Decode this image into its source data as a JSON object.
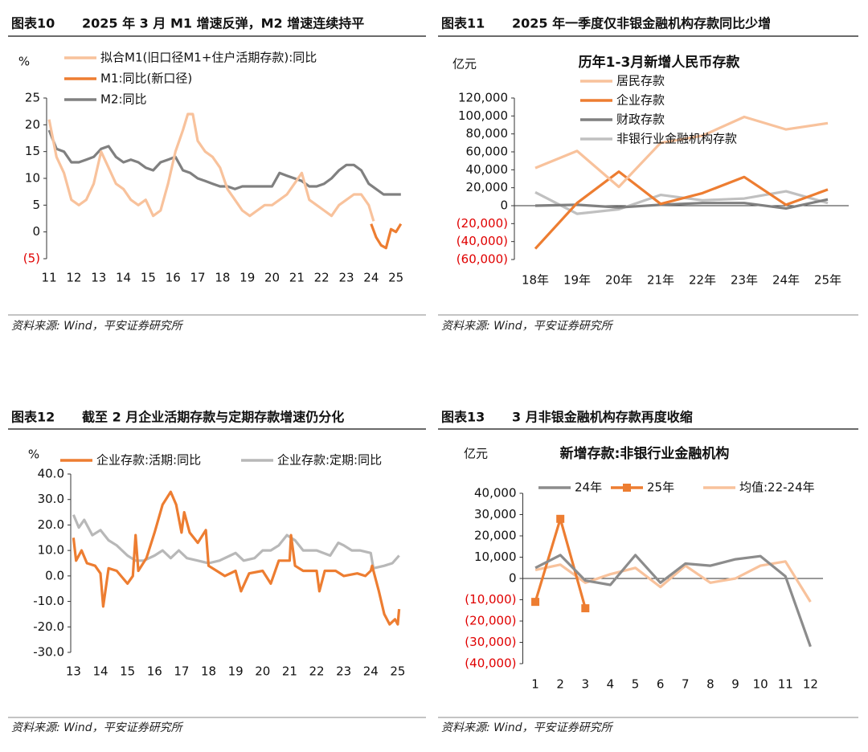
{
  "chart_data": [
    {
      "type": "line",
      "label": "图表10",
      "title": "2025 年 3 月 M1 增速反弹，M2 增速连续持平",
      "source": "资料来源: Wind，平安证券研究所",
      "y_unit": "%",
      "xlim": [
        10.9,
        25.4
      ],
      "xticks": [
        11,
        12,
        13,
        14,
        15,
        16,
        17,
        18,
        19,
        20,
        21,
        22,
        23,
        24,
        25
      ],
      "ylim": [
        -5,
        25
      ],
      "yticks": [
        25,
        20,
        15,
        10,
        5,
        0,
        {
          "value": -5,
          "label": "(5)"
        }
      ],
      "negative_tick_color": "#e00000",
      "legend": "top-left",
      "series": [
        {
          "name": "拟合M1(旧口径M1+住户活期存款):同比",
          "color": "#f8c29c",
          "x": [
            11,
            11.3,
            11.6,
            11.9,
            12.2,
            12.5,
            12.8,
            13.1,
            13.4,
            13.7,
            14,
            14.3,
            14.6,
            14.9,
            15.2,
            15.5,
            15.8,
            16.1,
            16.4,
            16.6,
            16.8,
            17,
            17.3,
            17.6,
            17.9,
            18.2,
            18.5,
            18.8,
            19.1,
            19.4,
            19.7,
            20,
            20.3,
            20.6,
            20.9,
            21.2,
            21.5,
            21.8,
            22.1,
            22.4,
            22.7,
            23,
            23.3,
            23.6,
            23.9,
            24.1
          ],
          "values": [
            21,
            14,
            11,
            6,
            5,
            6,
            9,
            15,
            12,
            9,
            8,
            6,
            5,
            6,
            3,
            4,
            9,
            15,
            19,
            22,
            22,
            17,
            15,
            14,
            12,
            8,
            6,
            4,
            3,
            4,
            5,
            5,
            6,
            7,
            9,
            11,
            6,
            5,
            4,
            3,
            5,
            6,
            7,
            7,
            5,
            2
          ]
        },
        {
          "name": "M1:同比(新口径)",
          "color": "#ed7d31",
          "x": [
            24,
            24.2,
            24.4,
            24.6,
            24.8,
            25,
            25.2
          ],
          "values": [
            1.5,
            -1,
            -2.5,
            -3,
            0.5,
            0,
            1.5
          ]
        },
        {
          "name": "M2:同比",
          "color": "#808080",
          "x": [
            11,
            11.3,
            11.6,
            11.9,
            12.2,
            12.5,
            12.8,
            13.1,
            13.4,
            13.7,
            14,
            14.3,
            14.6,
            14.9,
            15.2,
            15.5,
            15.8,
            16.1,
            16.4,
            16.7,
            17,
            17.3,
            17.6,
            17.9,
            18.2,
            18.5,
            18.8,
            19.1,
            19.4,
            19.7,
            20,
            20.3,
            20.6,
            20.9,
            21.2,
            21.5,
            21.8,
            22.1,
            22.4,
            22.7,
            23,
            23.3,
            23.6,
            23.9,
            24.2,
            24.5,
            24.8,
            25.2
          ],
          "values": [
            19,
            15.5,
            15,
            13,
            13,
            13.5,
            14,
            15.5,
            16,
            14,
            13,
            13.5,
            13,
            12,
            11.5,
            13,
            13.5,
            14,
            11.5,
            11,
            10,
            9.5,
            9,
            8.5,
            8.5,
            8,
            8.5,
            8.5,
            8.5,
            8.5,
            8.5,
            11,
            10.5,
            10,
            9.5,
            8.5,
            8.5,
            9,
            10,
            11.5,
            12.5,
            12.5,
            11.5,
            9,
            8,
            7,
            7,
            7
          ]
        }
      ]
    },
    {
      "type": "line",
      "label": "图表11",
      "title": "2025 年一季度仅非银金融机构存款同比少增",
      "source": "资料来源: Wind，平安证券研究所",
      "y_unit": "亿元",
      "chart_title": "历年1-3月新增人民币存款",
      "categories": [
        "18年",
        "19年",
        "20年",
        "21年",
        "22年",
        "23年",
        "24年",
        "25年"
      ],
      "ylim": [
        -60000,
        120000
      ],
      "yticks": [
        {
          "value": 120000,
          "label": "120,000"
        },
        {
          "value": 100000,
          "label": "100,000"
        },
        {
          "value": 80000,
          "label": "80,000"
        },
        {
          "value": 60000,
          "label": "60,000"
        },
        {
          "value": 40000,
          "label": "40,000"
        },
        {
          "value": 20000,
          "label": "20,000"
        },
        0,
        {
          "value": -20000,
          "label": "(20,000)"
        },
        {
          "value": -40000,
          "label": "(40,000)"
        },
        {
          "value": -60000,
          "label": "(60,000)"
        }
      ],
      "negative_tick_color": "#e00000",
      "zero_line": true,
      "legend": "top-center",
      "series": [
        {
          "name": "居民存款",
          "color": "#f8c29c",
          "values": [
            42000,
            61000,
            21000,
            70000,
            78000,
            99000,
            85000,
            92000
          ]
        },
        {
          "name": "企业存款",
          "color": "#ed7d31",
          "values": [
            -48000,
            3000,
            38000,
            2000,
            14000,
            32000,
            1000,
            18000
          ]
        },
        {
          "name": "财政存款",
          "color": "#808080",
          "values": [
            0,
            1000,
            -2000,
            1000,
            3000,
            3000,
            -3000,
            7000
          ]
        },
        {
          "name": "非银行业金融机构存款",
          "color": "#c0c0c0",
          "values": [
            15000,
            -9000,
            -4000,
            12000,
            6000,
            8000,
            16000,
            3000
          ]
        }
      ]
    },
    {
      "type": "line",
      "label": "图表12",
      "title": "截至 2 月企业活期存款与定期存款增速仍分化",
      "source": "资料来源: Wind，平安证券研究所",
      "y_unit": "%",
      "xlim": [
        12.9,
        25.3
      ],
      "xticks": [
        13,
        14,
        15,
        16,
        17,
        18,
        19,
        20,
        21,
        22,
        23,
        24,
        25
      ],
      "ylim": [
        -30,
        40
      ],
      "yticks": [
        {
          "value": 40,
          "label": "40.0"
        },
        {
          "value": 30,
          "label": "30.0"
        },
        {
          "value": 20,
          "label": "20.0"
        },
        {
          "value": 10,
          "label": "10.0"
        },
        {
          "value": 0,
          "label": "0.0"
        },
        {
          "value": -10,
          "label": "-10.0"
        },
        {
          "value": -20,
          "label": "-20.0"
        },
        {
          "value": -30,
          "label": "-30.0"
        }
      ],
      "legend": "top",
      "series": [
        {
          "name": "企业存款:活期:同比",
          "color": "#ed7d31",
          "x": [
            13,
            13.1,
            13.3,
            13.5,
            13.8,
            14,
            14.1,
            14.3,
            14.6,
            15,
            15.2,
            15.3,
            15.4,
            15.7,
            16,
            16.3,
            16.6,
            16.8,
            17,
            17.1,
            17.3,
            17.6,
            17.9,
            18,
            18.3,
            18.6,
            19,
            19.2,
            19.5,
            20,
            20.3,
            20.6,
            21,
            21.05,
            21.2,
            21.5,
            22,
            22.1,
            22.3,
            22.7,
            23,
            23.5,
            23.8,
            24,
            24.05,
            24.3,
            24.5,
            24.7,
            24.9,
            25,
            25.05
          ],
          "values": [
            15,
            6,
            10,
            5,
            4,
            1,
            -12,
            3,
            2,
            -3,
            0,
            16,
            2,
            7,
            17,
            28,
            33,
            28,
            17,
            25,
            17,
            13,
            18,
            4,
            2,
            0,
            2,
            -6,
            1,
            2,
            -3,
            6,
            6,
            16,
            4,
            2,
            2,
            -6,
            2,
            2,
            0,
            1,
            0,
            2,
            4,
            -6,
            -15,
            -19,
            -17,
            -19,
            -13
          ]
        },
        {
          "name": "企业存款:定期:同比",
          "color": "#b8b8b8",
          "x": [
            13,
            13.2,
            13.4,
            13.7,
            14,
            14.3,
            14.6,
            15,
            15.3,
            15.6,
            16,
            16.3,
            16.6,
            16.9,
            17.2,
            17.6,
            18,
            18.4,
            18.8,
            19,
            19.3,
            19.7,
            20,
            20.3,
            20.6,
            20.9,
            21.2,
            21.5,
            22,
            22.5,
            22.8,
            23,
            23.3,
            23.6,
            24,
            24.1,
            24.5,
            24.8,
            25.05
          ],
          "values": [
            24,
            19,
            22,
            16,
            18,
            14,
            12,
            8,
            6,
            6,
            8,
            10,
            7,
            10,
            7,
            6,
            5,
            6,
            8,
            9,
            6,
            7,
            10,
            10,
            12,
            16,
            14,
            10,
            10,
            8,
            13,
            12,
            10,
            10,
            9,
            3,
            4,
            5,
            8
          ]
        }
      ]
    },
    {
      "type": "line",
      "label": "图表13",
      "title": "3 月非银金融机构存款再度收缩",
      "source": "资料来源: Wind，平安证券研究所",
      "y_unit": "亿元",
      "chart_title": "新增存款:非银行业金融机构",
      "categories": [
        "1",
        "2",
        "3",
        "4",
        "5",
        "6",
        "7",
        "8",
        "9",
        "10",
        "11",
        "12"
      ],
      "ylim": [
        -40000,
        40000
      ],
      "yticks": [
        {
          "value": 40000,
          "label": "40,000"
        },
        {
          "value": 30000,
          "label": "30,000"
        },
        {
          "value": 20000,
          "label": "20,000"
        },
        {
          "value": 10000,
          "label": "10,000"
        },
        0,
        {
          "value": -10000,
          "label": "(10,000)"
        },
        {
          "value": -20000,
          "label": "(20,000)"
        },
        {
          "value": -30000,
          "label": "(30,000)"
        },
        {
          "value": -40000,
          "label": "(40,000)"
        }
      ],
      "negative_tick_color": "#e00000",
      "zero_line": true,
      "legend": "top",
      "series": [
        {
          "name": "24年",
          "color": "#8c8c8c",
          "values": [
            5000,
            11000,
            -1000,
            -3000,
            11000,
            -2000,
            7000,
            6000,
            9000,
            10500,
            1000,
            -32000
          ]
        },
        {
          "name": "25年",
          "color": "#ed7d31",
          "marker": true,
          "values": [
            -11000,
            28000,
            -14000,
            null,
            null,
            null,
            null,
            null,
            null,
            null,
            null,
            null
          ]
        },
        {
          "name": "均值:22-24年",
          "color": "#f8c29c",
          "values": [
            4000,
            6500,
            -2000,
            2000,
            5000,
            -4000,
            6000,
            -2000,
            0,
            6000,
            8000,
            -11000
          ]
        }
      ]
    }
  ]
}
